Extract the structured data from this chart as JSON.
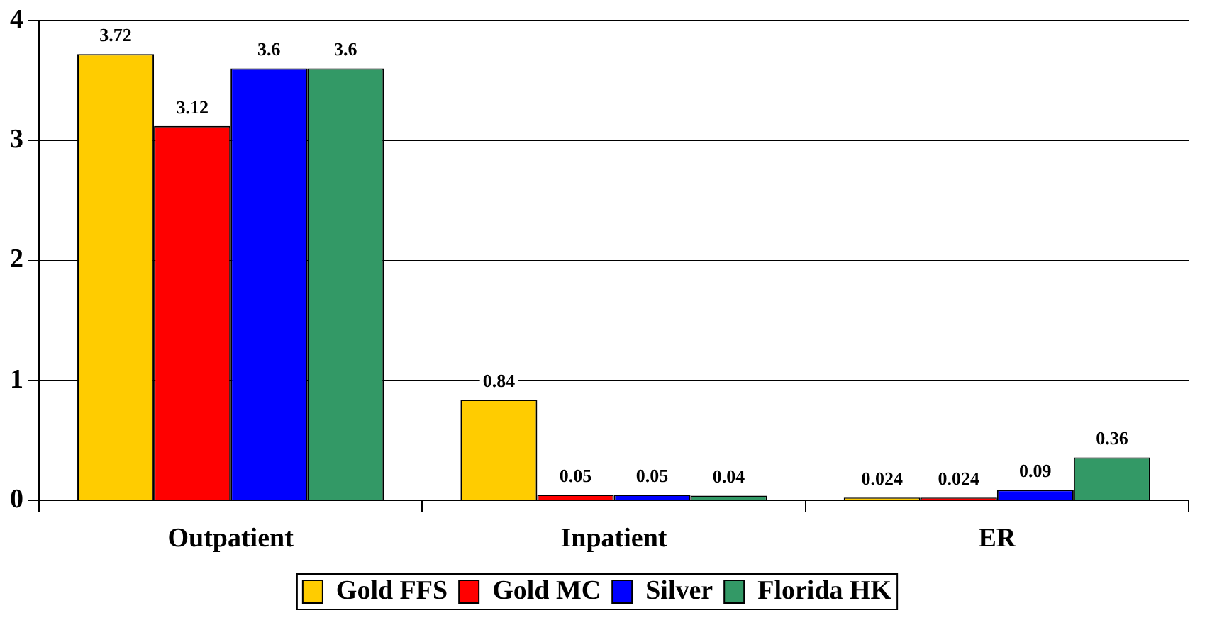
{
  "chart_data": {
    "type": "bar",
    "categories": [
      "Outpatient",
      "Inpatient",
      "ER"
    ],
    "series": [
      {
        "name": "Gold FFS",
        "color": "#ffcc00",
        "values": [
          3.72,
          0.84,
          0.024
        ]
      },
      {
        "name": "Gold MC",
        "color": "#ff0000",
        "values": [
          3.12,
          0.05,
          0.024
        ]
      },
      {
        "name": "Silver",
        "color": "#0000ff",
        "values": [
          3.6,
          0.05,
          0.09
        ]
      },
      {
        "name": "Florida HK",
        "color": "#339966",
        "values": [
          3.6,
          0.04,
          0.36
        ]
      }
    ],
    "ylim": [
      0,
      4
    ],
    "yticks": [
      0,
      1,
      2,
      3,
      4
    ],
    "grid": "y",
    "legend": "bottom",
    "data_labels": true
  }
}
